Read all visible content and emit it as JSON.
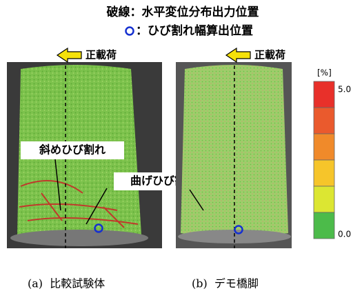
{
  "legend": {
    "line1": "破線：水平変位分布出力位置",
    "line2": "：ひび割れ幅算出位置"
  },
  "panels": [
    {
      "load_label": "正載荷",
      "caption": "(a)  比較試験体",
      "annotations": [
        "斜めひび割れ",
        "曲げひび割れ"
      ]
    },
    {
      "load_label": "正載荷",
      "caption": "(b)  デモ橋脚"
    }
  ],
  "colorbar": {
    "unit": "[%]",
    "ticks": [
      {
        "value": 5,
        "label": "5.0"
      },
      {
        "value": 0,
        "label": "0.0"
      }
    ]
  }
}
